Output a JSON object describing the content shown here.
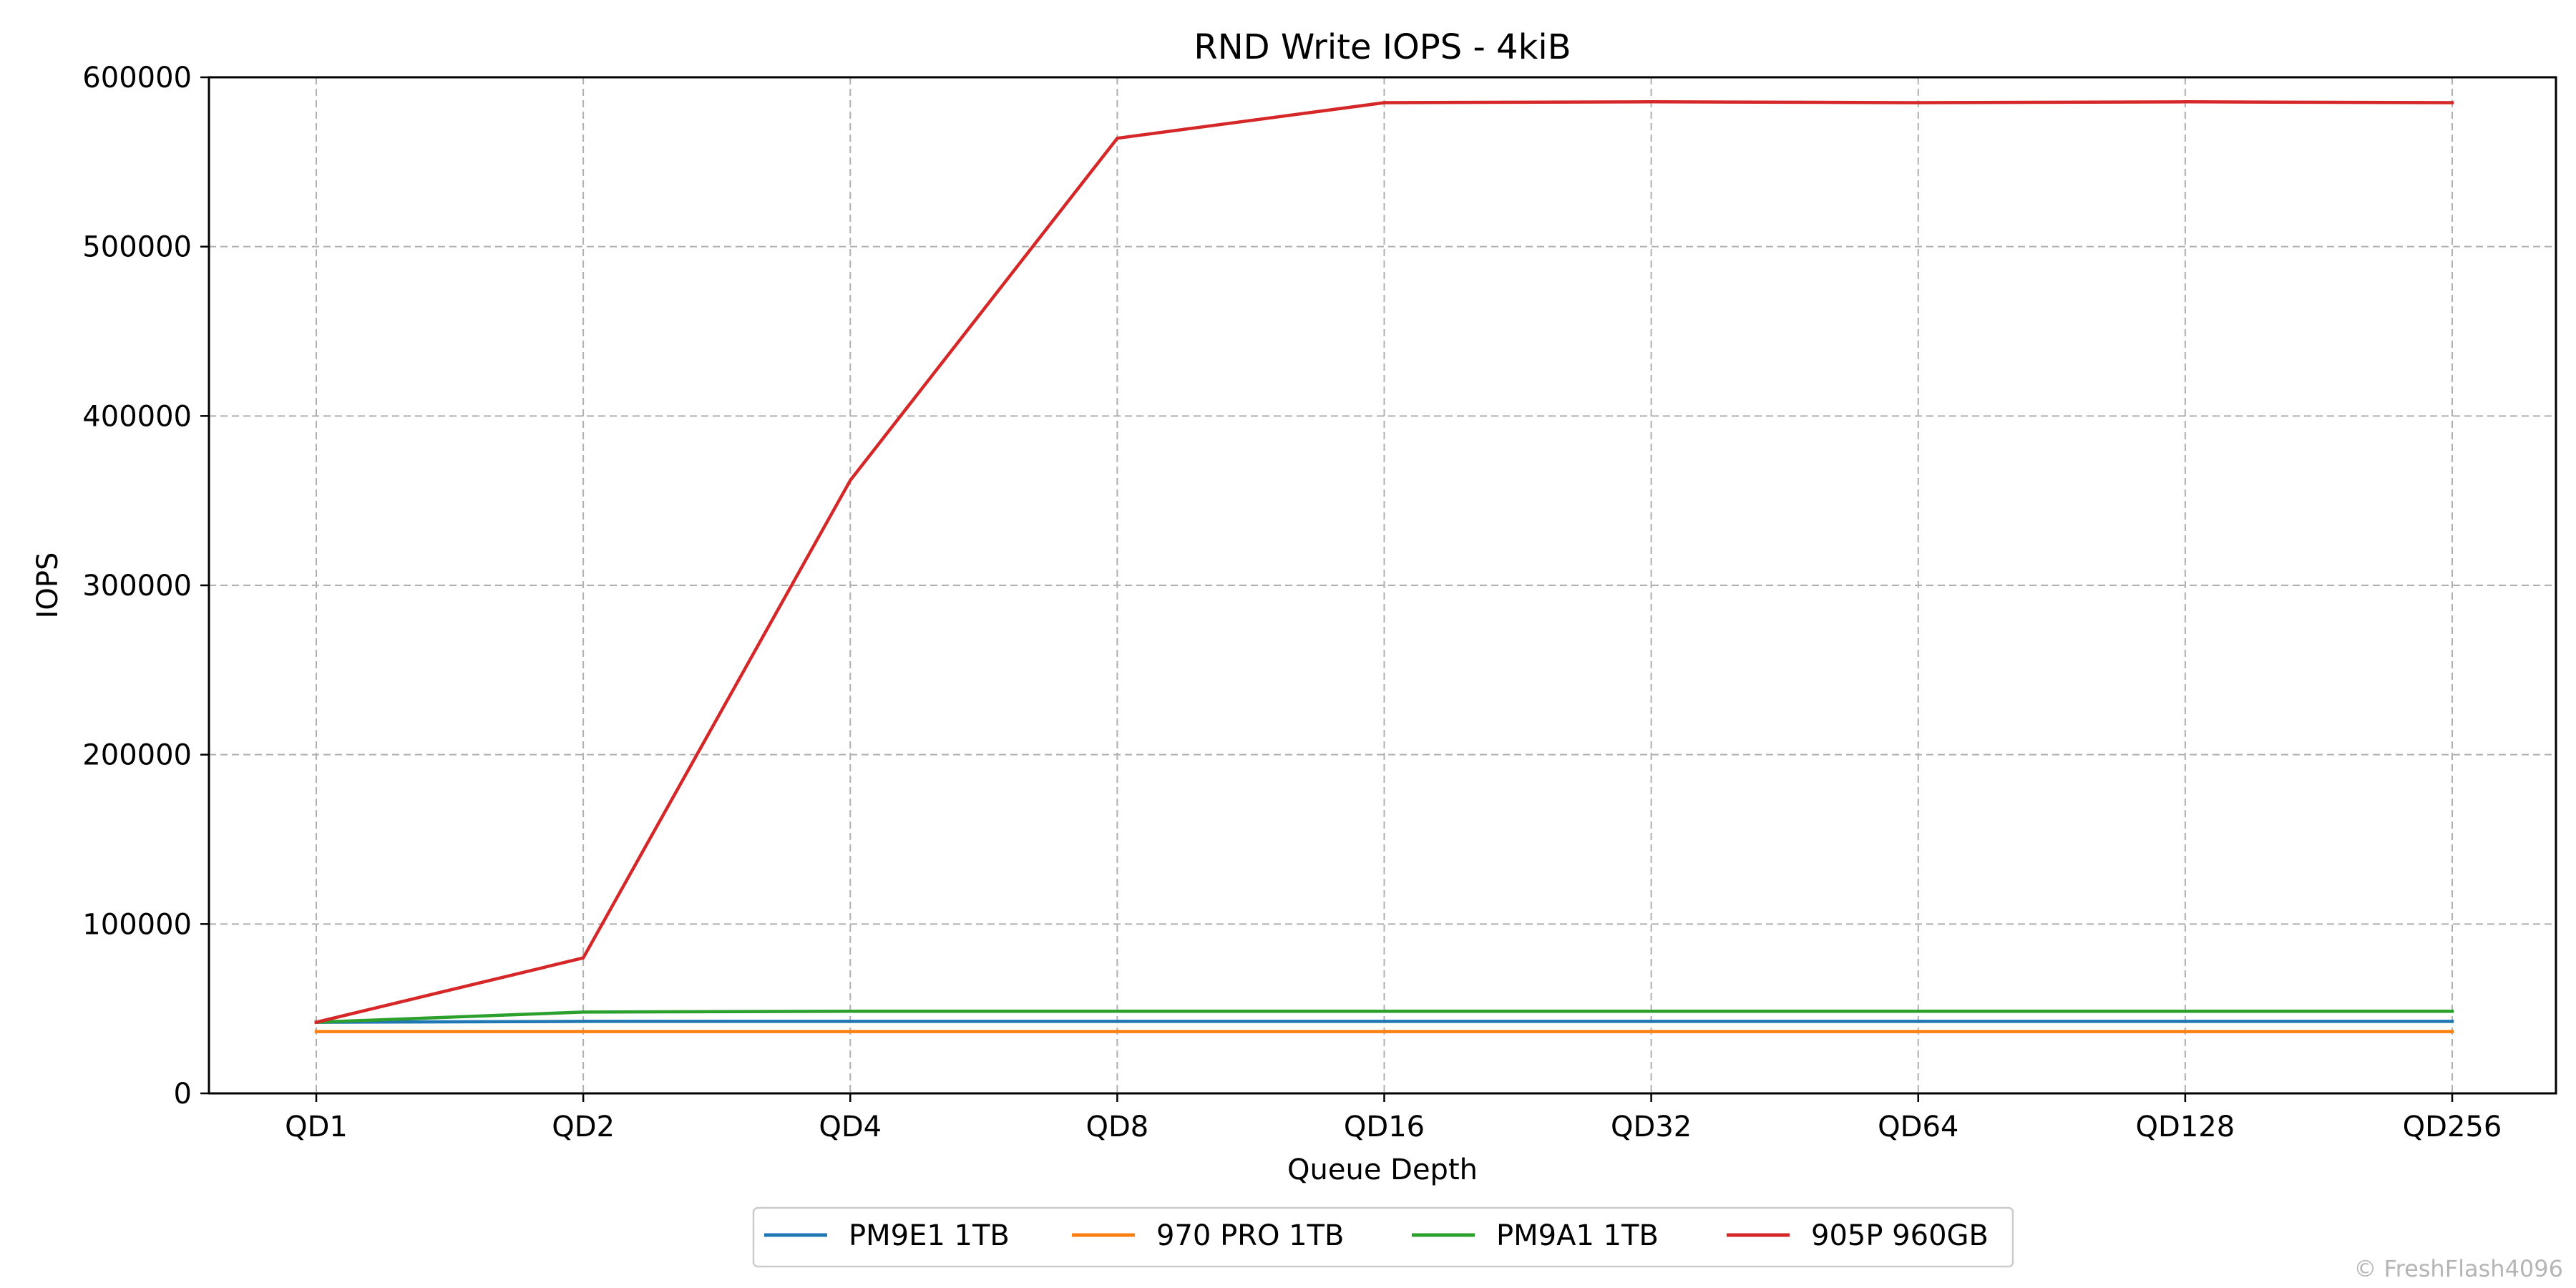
{
  "chart_data": {
    "type": "line",
    "title": "RND Write IOPS - 4kiB",
    "xlabel": "Queue Depth",
    "ylabel": "IOPS",
    "categories": [
      "QD1",
      "QD2",
      "QD4",
      "QD8",
      "QD16",
      "QD32",
      "QD64",
      "QD128",
      "QD256"
    ],
    "ylim": [
      0,
      600000
    ],
    "yticks": [
      "0",
      "100000",
      "200000",
      "300000",
      "400000",
      "500000",
      "600000"
    ],
    "grid": true,
    "legend_position": "bottom-center",
    "series": [
      {
        "name": "PM9E1 1TB",
        "color": "#1f77b4",
        "values": [
          42000,
          42500,
          42500,
          42500,
          42500,
          42500,
          42500,
          42500,
          42500
        ]
      },
      {
        "name": "970 PRO 1TB",
        "color": "#ff7f0e",
        "values": [
          36500,
          36500,
          36500,
          36500,
          36500,
          36500,
          36500,
          36500,
          36500
        ]
      },
      {
        "name": "PM9A1 1TB",
        "color": "#2ca02c",
        "values": [
          42000,
          48000,
          48500,
          48500,
          48500,
          48500,
          48500,
          48500,
          48500
        ]
      },
      {
        "name": "905P 960GB",
        "color": "#d62728",
        "values": [
          42000,
          80000,
          362000,
          564000,
          585000,
          585500,
          585000,
          585500,
          585000
        ]
      }
    ]
  },
  "watermark": "© FreshFlash4096"
}
